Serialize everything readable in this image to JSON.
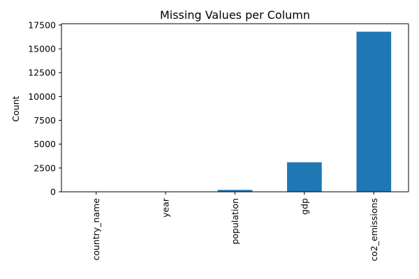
{
  "chart_data": {
    "type": "bar",
    "title": "Missing Values per Column",
    "xlabel": "",
    "ylabel": "Count",
    "categories": [
      "country_name",
      "year",
      "population",
      "gdp",
      "co2_emissions"
    ],
    "values": [
      0,
      0,
      200,
      3100,
      16800
    ],
    "ylim": [
      0,
      17640
    ],
    "yticks": [
      0,
      2500,
      5000,
      7500,
      10000,
      12500,
      15000,
      17500
    ],
    "ytick_labels": [
      "0",
      "2500",
      "5000",
      "7500",
      "10000",
      "12500",
      "15000",
      "17500"
    ],
    "grid": false,
    "legend": "none",
    "bar_color": "#1f77b4"
  }
}
